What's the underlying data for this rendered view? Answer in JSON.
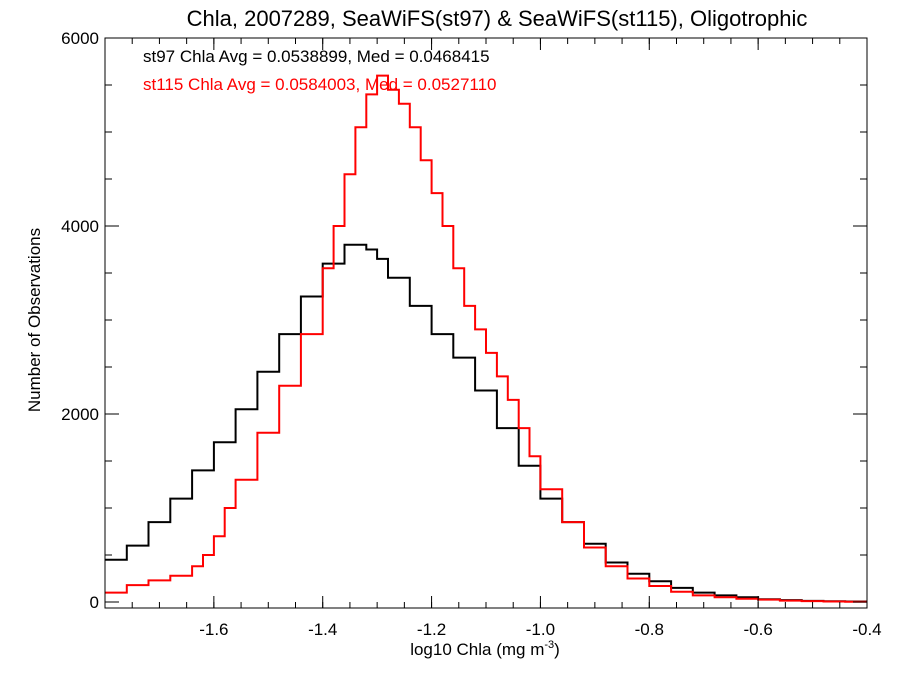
{
  "chart_data": {
    "type": "line",
    "title": "Chla, 2007289, SeaWiFS(st97) & SeaWiFS(st115), Oligotrophic",
    "xlabel": "log10 Chla (mg m",
    "xlabel_sup": "-3",
    "xlabel_end": ")",
    "ylabel": "Number of Observations",
    "xlim": [
      -1.8,
      -0.4
    ],
    "ylim": [
      0,
      6000
    ],
    "xticks": [
      -1.6,
      -1.4,
      -1.2,
      -1.0,
      -0.8,
      -0.6,
      -0.4
    ],
    "xtick_labels": [
      "-1.6",
      "-1.4",
      "-1.2",
      "-1.0",
      "-0.8",
      "-0.6",
      "-0.4"
    ],
    "yticks": [
      0,
      2000,
      4000,
      6000
    ],
    "ytick_labels": [
      "0",
      "2000",
      "4000",
      "6000"
    ],
    "grid": false,
    "annotations": [
      {
        "text": "st97 Chla Avg = 0.0538899, Med = 0.0468415",
        "color": "#000000"
      },
      {
        "text": "st115 Chla Avg = 0.0584003, Med = 0.0527110",
        "color": "#ff0000"
      }
    ],
    "series": [
      {
        "color": "#000000",
        "x": [
          -1.8,
          -1.76,
          -1.72,
          -1.68,
          -1.64,
          -1.6,
          -1.56,
          -1.52,
          -1.48,
          -1.44,
          -1.4,
          -1.36,
          -1.34,
          -1.32,
          -1.3,
          -1.28,
          -1.24,
          -1.2,
          -1.16,
          -1.12,
          -1.08,
          -1.04,
          -1.0,
          -0.96,
          -0.92,
          -0.88,
          -0.84,
          -0.8,
          -0.76,
          -0.72,
          -0.68,
          -0.64,
          -0.6,
          -0.56,
          -0.52,
          -0.48,
          -0.44,
          -0.4
        ],
        "y": [
          450,
          600,
          850,
          1100,
          1400,
          1700,
          2050,
          2450,
          2850,
          3250,
          3600,
          3800,
          3800,
          3750,
          3650,
          3450,
          3150,
          2850,
          2600,
          2250,
          1850,
          1450,
          1100,
          850,
          620,
          420,
          300,
          220,
          150,
          100,
          70,
          50,
          30,
          20,
          12,
          8,
          5,
          5
        ]
      },
      {
        "color": "#ff0000",
        "x": [
          -1.8,
          -1.76,
          -1.72,
          -1.68,
          -1.64,
          -1.62,
          -1.6,
          -1.58,
          -1.56,
          -1.52,
          -1.48,
          -1.44,
          -1.4,
          -1.38,
          -1.36,
          -1.34,
          -1.32,
          -1.3,
          -1.28,
          -1.26,
          -1.24,
          -1.22,
          -1.2,
          -1.18,
          -1.16,
          -1.14,
          -1.12,
          -1.1,
          -1.08,
          -1.06,
          -1.04,
          -1.02,
          -1.0,
          -0.96,
          -0.92,
          -0.88,
          -0.84,
          -0.8,
          -0.76,
          -0.72,
          -0.68,
          -0.64,
          -0.6,
          -0.56,
          -0.52,
          -0.48,
          -0.44,
          -0.4
        ],
        "y": [
          100,
          180,
          230,
          280,
          380,
          500,
          700,
          1000,
          1300,
          1800,
          2300,
          2850,
          3550,
          4000,
          4550,
          5050,
          5400,
          5600,
          5450,
          5300,
          5050,
          4700,
          4350,
          4000,
          3550,
          3150,
          2900,
          2650,
          2400,
          2150,
          1850,
          1550,
          1200,
          850,
          580,
          380,
          250,
          170,
          110,
          70,
          50,
          35,
          25,
          15,
          10,
          5,
          3,
          3
        ]
      }
    ]
  }
}
